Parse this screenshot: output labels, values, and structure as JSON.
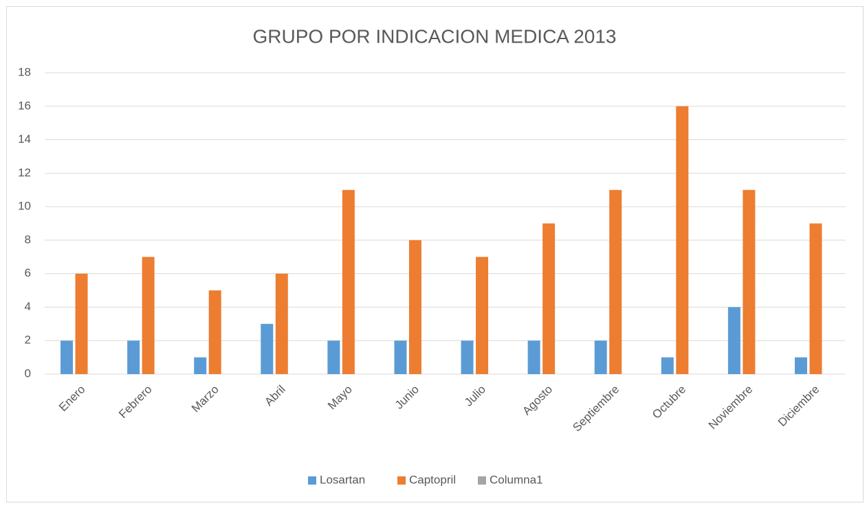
{
  "chart_data": {
    "type": "bar",
    "title": "GRUPO POR INDICACION MEDICA 2013",
    "categories": [
      "Enero",
      "Febrero",
      "Marzo",
      "Abril",
      "Mayo",
      "Junio",
      "Julio",
      "Agosto",
      "Septiembre",
      "Octubre",
      "Noviembre",
      "Diciembre"
    ],
    "series": [
      {
        "name": "Losartan",
        "color": "#5b9bd5",
        "values": [
          2,
          2,
          1,
          3,
          2,
          2,
          2,
          2,
          2,
          1,
          4,
          1
        ]
      },
      {
        "name": "Captopril",
        "color": "#ed7d31",
        "values": [
          6,
          7,
          5,
          6,
          11,
          8,
          7,
          9,
          11,
          16,
          11,
          9
        ]
      },
      {
        "name": "Columna1",
        "color": "#a5a5a5",
        "values": [
          null,
          null,
          null,
          null,
          null,
          null,
          null,
          null,
          null,
          null,
          null,
          null
        ]
      }
    ],
    "ylim": [
      0,
      18
    ],
    "yticks": [
      0,
      2,
      4,
      6,
      8,
      10,
      12,
      14,
      16,
      18
    ],
    "grid": true,
    "legend": "bottom"
  }
}
